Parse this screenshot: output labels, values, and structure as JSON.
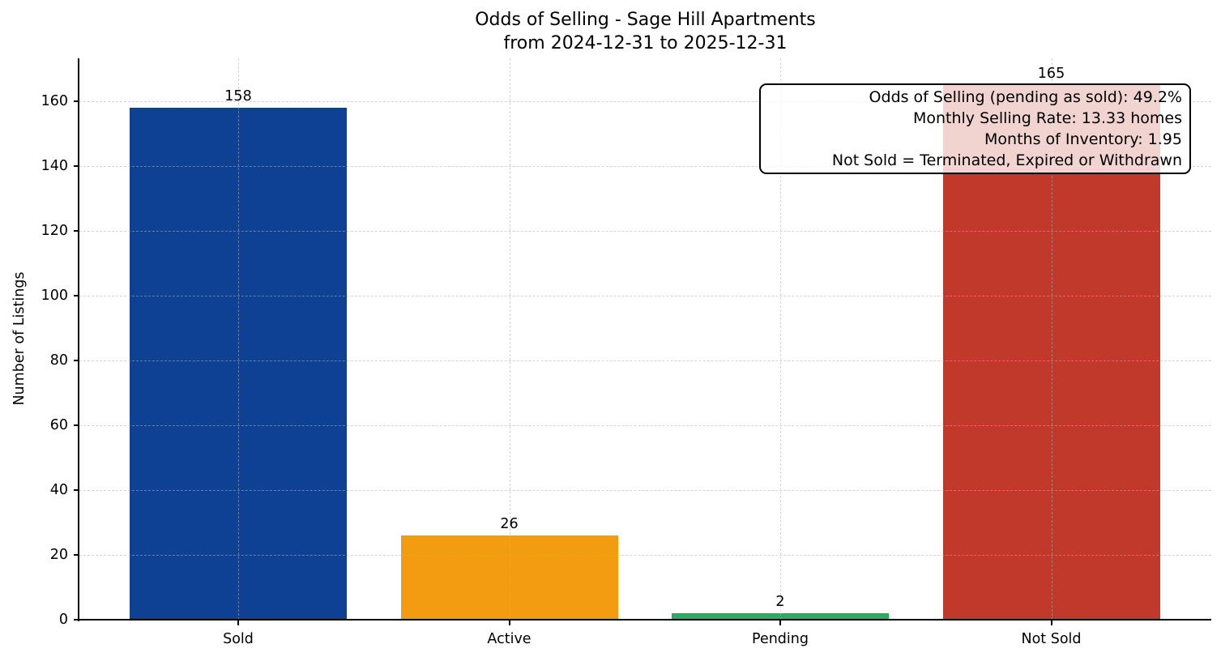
{
  "chart_data": {
    "type": "bar",
    "title": "Odds of Selling - Sage Hill Apartments",
    "subtitle": "from 2024-12-31 to 2025-12-31",
    "ylabel": "Number of Listings",
    "xlabel": "",
    "categories": [
      "Sold",
      "Active",
      "Pending",
      "Not Sold"
    ],
    "values": [
      158,
      26,
      2,
      165
    ],
    "bar_colors": [
      "#0e4194",
      "#f39c12",
      "#27ae60",
      "#c0392b"
    ],
    "yticks": [
      0,
      20,
      40,
      60,
      80,
      100,
      120,
      140,
      160
    ],
    "ylim": [
      0,
      173.25
    ],
    "grid": {
      "visible": true,
      "style": "dashed",
      "color": "#b0b0b0"
    },
    "legend_position": "none",
    "annotation": {
      "lines": [
        "Odds of Selling (pending as sold): 49.2%",
        "Monthly Selling Rate: 13.33 homes",
        "Months of Inventory: 1.95",
        "Not Sold = Terminated, Expired or Withdrawn"
      ]
    }
  }
}
